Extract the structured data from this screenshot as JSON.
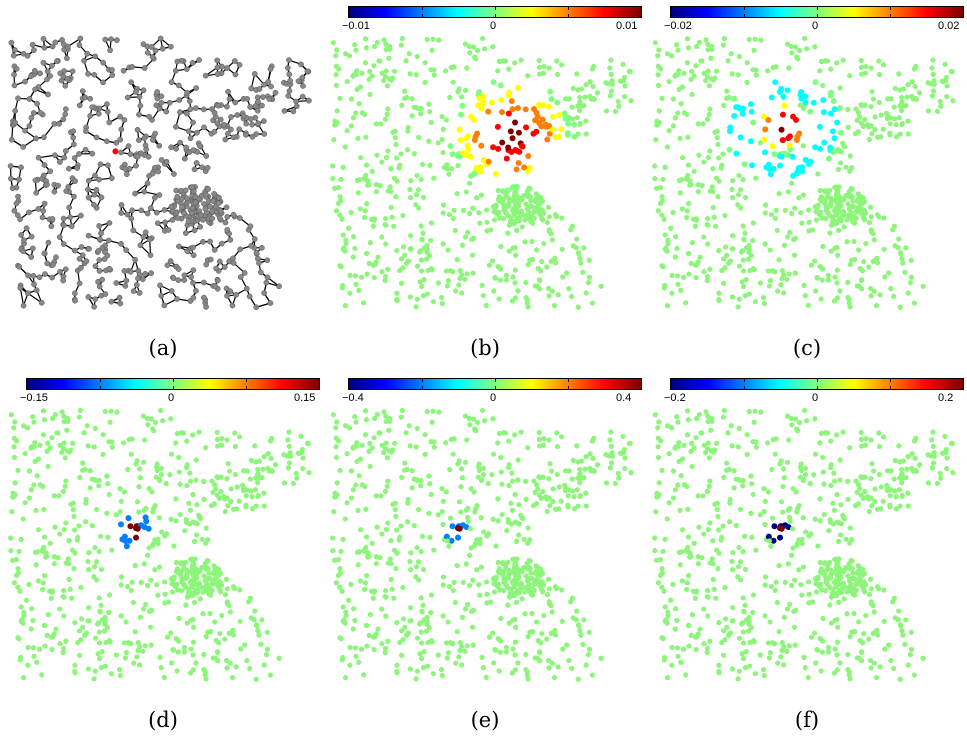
{
  "panels": [
    {
      "id": "a",
      "caption": "(a)",
      "type": "graph",
      "colorbar": null
    },
    {
      "id": "b",
      "caption": "(b)",
      "type": "wavelet",
      "colorbar": {
        "min": "−0.01",
        "mid": "0",
        "max": "0.01"
      },
      "center": [
        0.58,
        0.36
      ],
      "spread": 0.16,
      "style": "broad"
    },
    {
      "id": "c",
      "caption": "(c)",
      "type": "wavelet",
      "colorbar": {
        "min": "−0.02",
        "mid": "0",
        "max": "0.02"
      },
      "center": [
        0.42,
        0.33
      ],
      "spread": 0.09,
      "style": "medium"
    },
    {
      "id": "d",
      "caption": "(d)",
      "type": "wavelet",
      "colorbar": {
        "min": "−0.15",
        "mid": "0",
        "max": "0.15"
      },
      "center": [
        0.4,
        0.45
      ],
      "spread": 0.05,
      "style": "narrow"
    },
    {
      "id": "e",
      "caption": "(e)",
      "type": "wavelet",
      "colorbar": {
        "min": "−0.4",
        "mid": "0",
        "max": "0.4"
      },
      "center": [
        0.4,
        0.45
      ],
      "spread": 0.03,
      "style": "tiny"
    },
    {
      "id": "f",
      "caption": "(f)",
      "type": "wavelet",
      "colorbar": {
        "min": "−0.2",
        "mid": "0",
        "max": "0.2"
      },
      "center": [
        0.4,
        0.45
      ],
      "spread": 0.03,
      "style": "tiny2"
    }
  ],
  "colors": {
    "node_gray": "#888888",
    "edge_black": "#000000",
    "highlight_red": "#ff0000",
    "neutral_green": "#8cf57a",
    "colormap": [
      "#00007f",
      "#0000ff",
      "#007fff",
      "#00ffff",
      "#7fff7f",
      "#ffff00",
      "#ff7f00",
      "#ff0000",
      "#7f0000"
    ]
  }
}
